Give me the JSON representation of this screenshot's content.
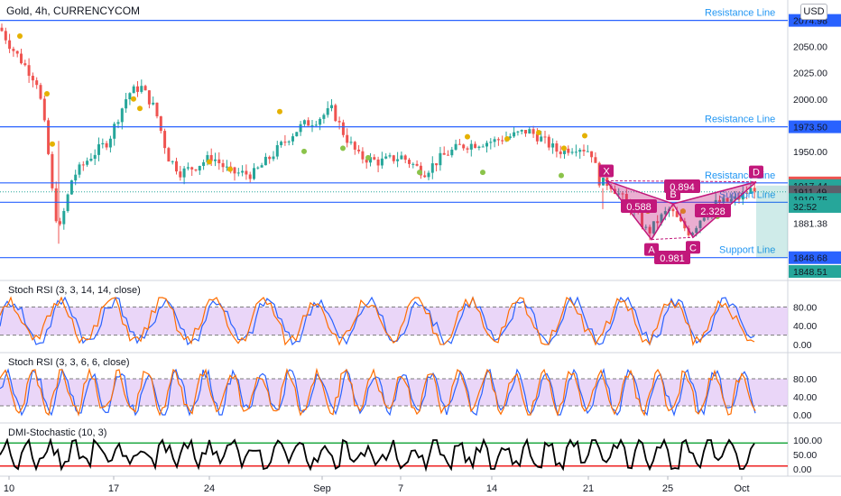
{
  "header": {
    "title": "Gold, 4h, CURRENCYCOM",
    "currency": "USD"
  },
  "colors": {
    "up": "#26a69a",
    "down": "#ef5350",
    "level": "#2962ff",
    "harmonic": "#c2187b",
    "stoch_k": "#2962ff",
    "stoch_d": "#ff6d00",
    "band": "#e1c4f5",
    "dmi": "#000000",
    "dmi_high": "#22aa44",
    "dmi_low": "#ee2222",
    "label_blue": "#2196f3"
  },
  "chart_data": [
    {
      "type": "candlestick",
      "title": "Gold, 4h, CURRENCYCOM",
      "y_ticks": [
        "2074.98",
        "2050.00",
        "2025.00",
        "2000.00",
        "1973.50",
        "1950.00",
        "1920.00",
        "1917.44",
        "1911.49",
        "1910.75",
        "32:52",
        "1881.38",
        "1848.68",
        "1848.51"
      ],
      "x_ticks": [
        "10",
        "17",
        "24",
        "Sep",
        "7",
        "14",
        "21",
        "25",
        "Oct"
      ],
      "ylim": [
        1838,
        2090
      ],
      "levels": [
        {
          "name": "Resistance Line",
          "price": 2074.98
        },
        {
          "name": "Resistance Line",
          "price": 1973.5
        },
        {
          "name": "Resistance Line",
          "price": 1920.0
        },
        {
          "name": "Support Line",
          "price": 1901.5
        },
        {
          "name": "Support Line",
          "price": 1848.68
        }
      ],
      "harmonic": {
        "points": [
          {
            "label": "X",
            "price": 1922
          },
          {
            "label": "A",
            "price": 1866
          },
          {
            "label": "B",
            "price": 1900
          },
          {
            "label": "C",
            "price": 1868
          },
          {
            "label": "D",
            "price": 1921
          }
        ],
        "ratios": [
          "0.588",
          "0.894",
          "0.981",
          "2.328"
        ]
      },
      "current_price": "1911.49",
      "countdown": "32:52"
    },
    {
      "type": "line",
      "name": "Stoch RSI (3, 3, 14, 14, close)",
      "y_ticks": [
        "80.00",
        "40.00",
        "0.00"
      ],
      "band": [
        20,
        80
      ]
    },
    {
      "type": "line",
      "name": "Stoch RSI (3, 3, 6, 6, close)",
      "y_ticks": [
        "80.00",
        "40.00",
        "0.00"
      ],
      "band": [
        20,
        80
      ]
    },
    {
      "type": "line",
      "name": "DMI-Stochastic (10, 3)",
      "y_ticks": [
        "100.00",
        "50.00",
        "0.00"
      ],
      "levels": [
        90,
        10
      ]
    }
  ]
}
